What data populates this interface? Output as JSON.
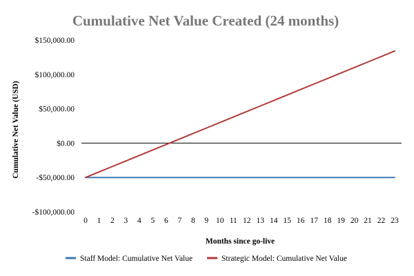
{
  "chart_data": {
    "type": "line",
    "title": "Cumulative Net Value Created (24 months)",
    "xlabel": "Months since go-live",
    "ylabel": "Cumulative Net Value (USD)",
    "x": [
      0,
      1,
      2,
      3,
      4,
      5,
      6,
      7,
      8,
      9,
      10,
      11,
      12,
      13,
      14,
      15,
      16,
      17,
      18,
      19,
      20,
      21,
      22,
      23
    ],
    "x_tick_labels": [
      "0",
      "1",
      "2",
      "3",
      "4",
      "5",
      "6",
      "7",
      "8",
      "9",
      "10",
      "11",
      "12",
      "13",
      "14",
      "15",
      "16",
      "17",
      "18",
      "19",
      "20",
      "21",
      "22",
      "23"
    ],
    "ylim": [
      -100000,
      150000
    ],
    "y_ticks": [
      -100000,
      -50000,
      0,
      50000,
      100000,
      150000
    ],
    "y_tick_labels": [
      "-$100,000.00",
      "-$50,000.00",
      "$0.00",
      "$50,000.00",
      "$100,000.00",
      "$150,000.00"
    ],
    "grid": false,
    "zero_line": true,
    "legend_position": "bottom",
    "series": [
      {
        "name": "Staff Model: Cumulative Net Value",
        "color": "#3f78b5",
        "values": [
          -50000,
          -50000,
          -50000,
          -50000,
          -50000,
          -50000,
          -50000,
          -50000,
          -50000,
          -50000,
          -50000,
          -50000,
          -50000,
          -50000,
          -50000,
          -50000,
          -50000,
          -50000,
          -50000,
          -50000,
          -50000,
          -50000,
          -50000,
          -50000
        ]
      },
      {
        "name": "Strategic Model: Cumulative Net Value",
        "color": "#b03a37",
        "values": [
          -50000,
          -42000,
          -34000,
          -26000,
          -18000,
          -10000,
          -2000,
          6000,
          14000,
          22000,
          30000,
          38000,
          46000,
          54000,
          62000,
          70000,
          78000,
          86000,
          94000,
          102000,
          110000,
          118000,
          126000,
          134000
        ]
      }
    ]
  }
}
